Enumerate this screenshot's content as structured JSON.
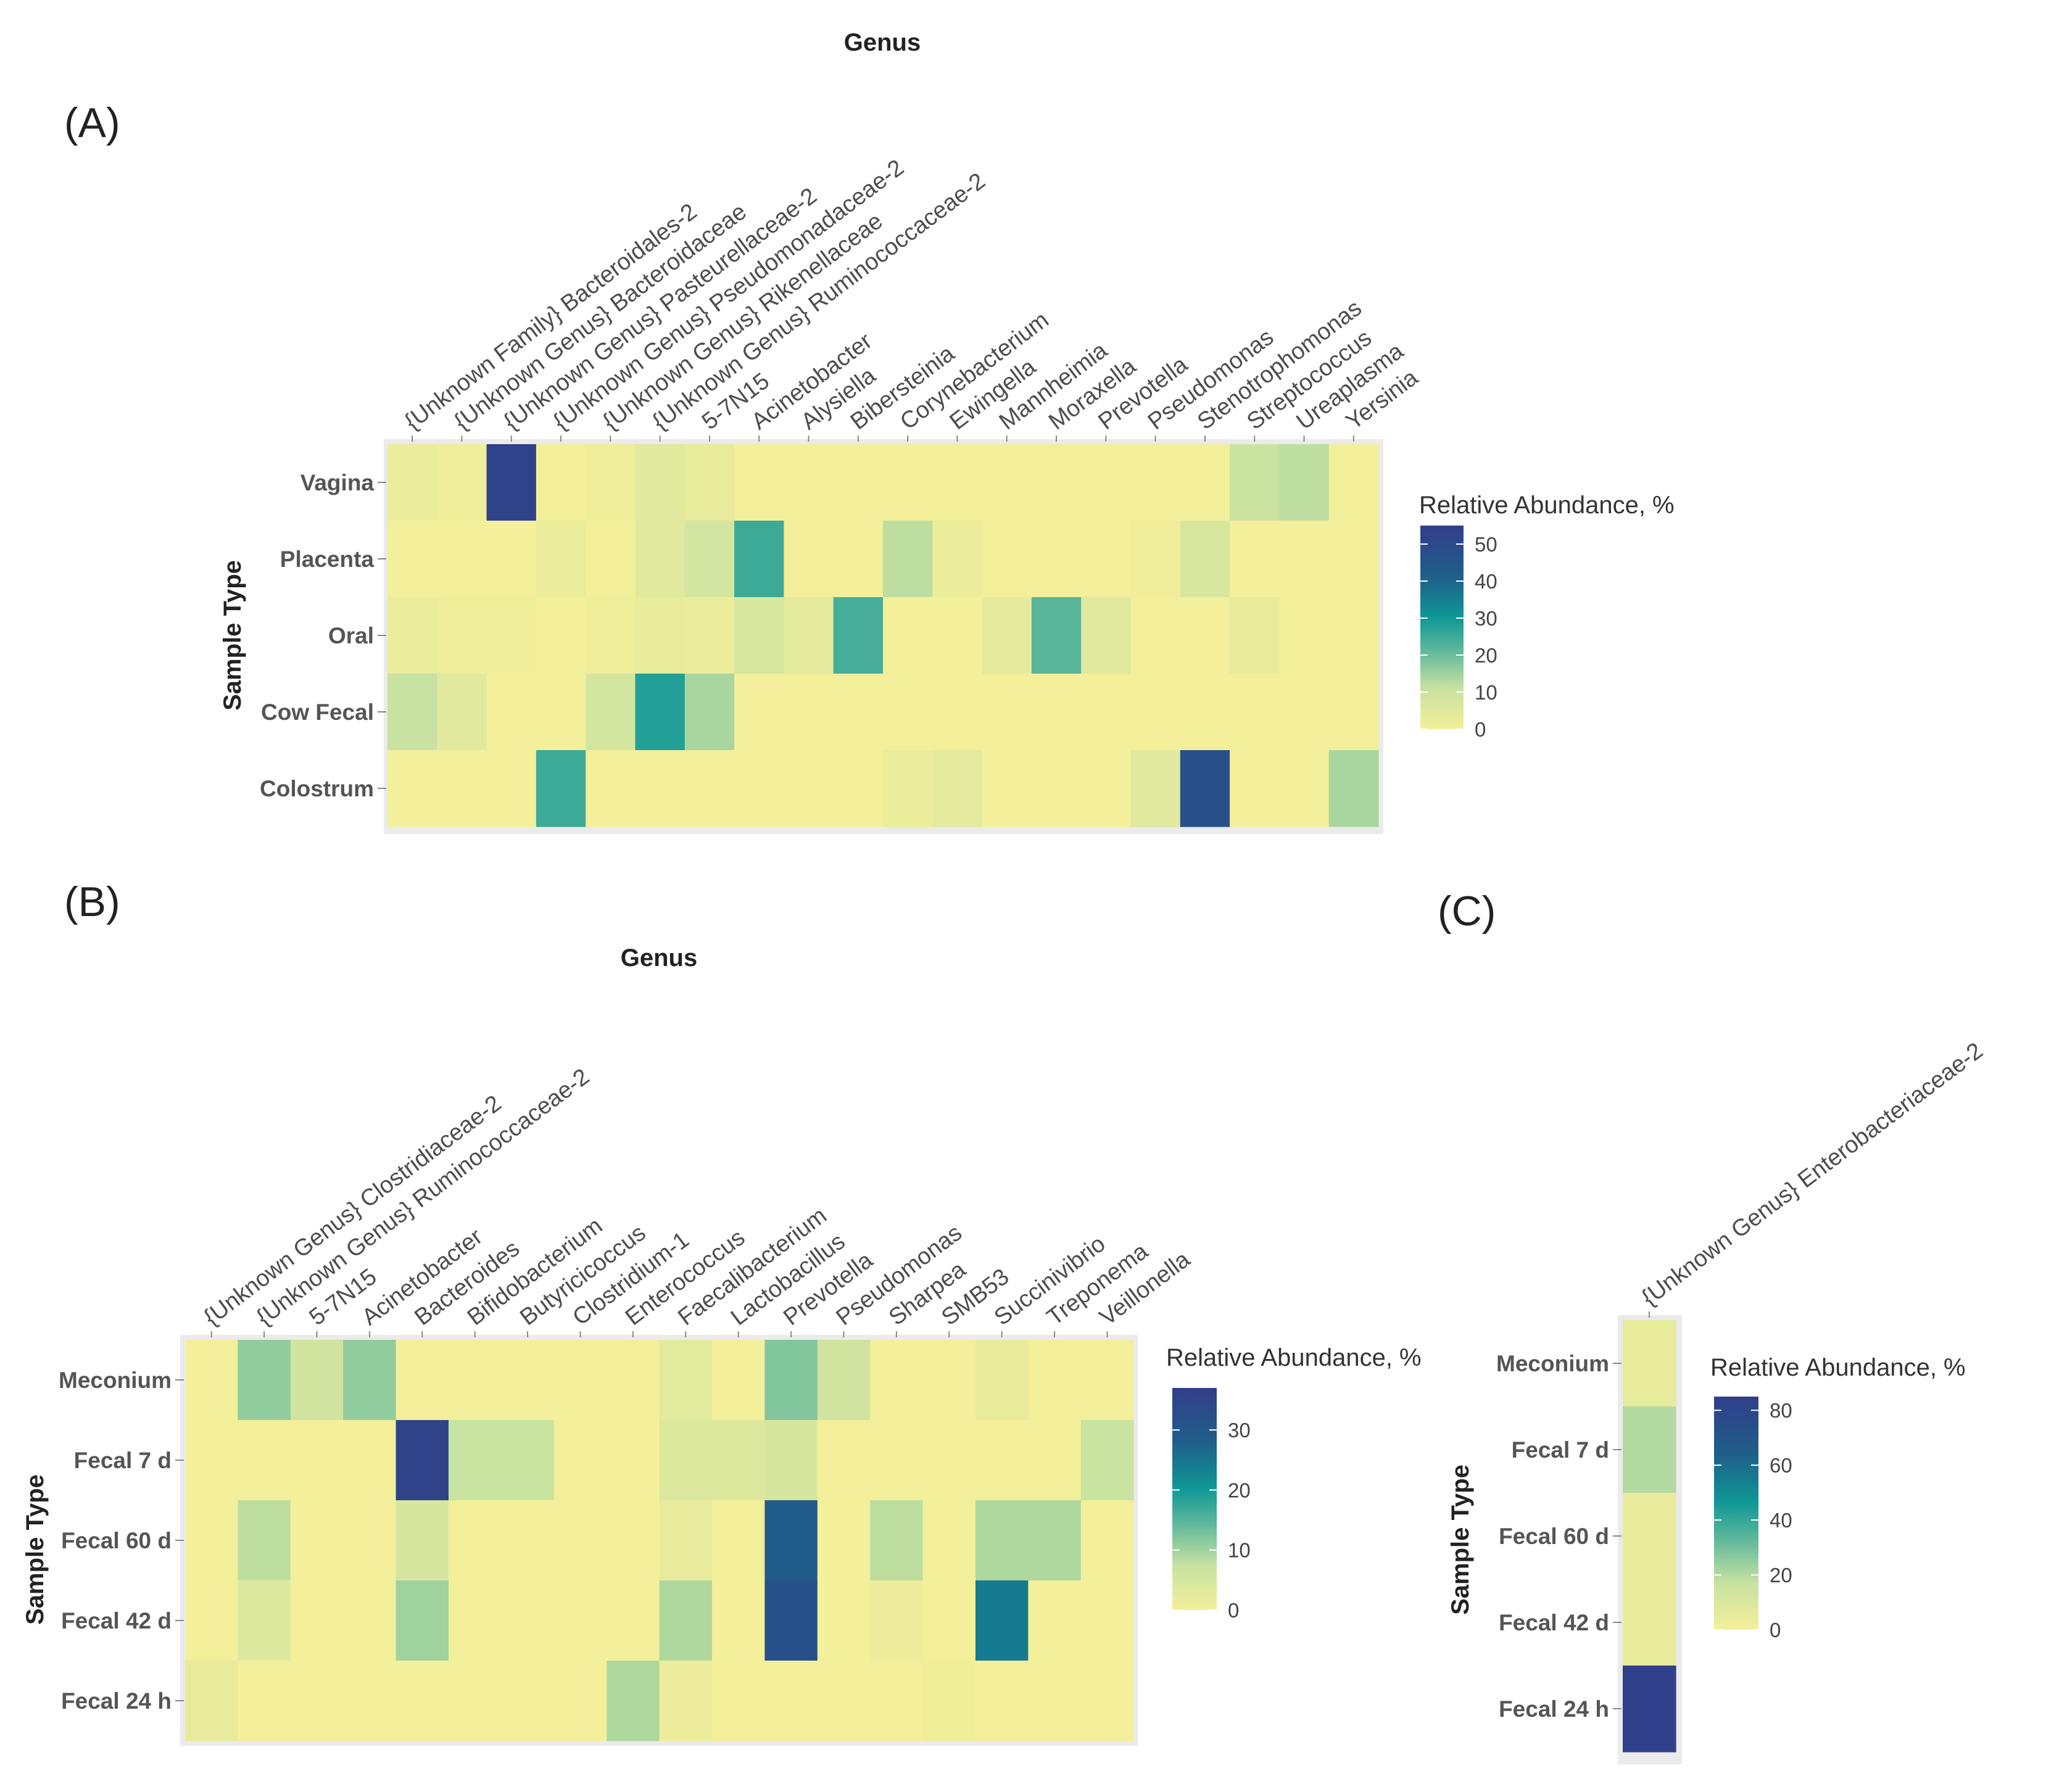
{
  "figure": {
    "panels": [
      "(A)",
      "(B)",
      "(C)"
    ]
  },
  "chart_data": [
    {
      "type": "heatmap",
      "panel": "(A)",
      "title": "",
      "xlabel": "Genus",
      "ylabel": "Sample Type",
      "legend_title": "Relative Abundance, %",
      "legend_range": [
        0,
        55
      ],
      "legend_ticks": [
        0,
        10,
        20,
        30,
        40,
        50
      ],
      "categories": [
        "{Unknown Family} Bacteroidales-2",
        "{Unknown Genus} Bacteroidaceae",
        "{Unknown Genus} Pasteurellaceae-2",
        "{Unknown Genus} Pseudomonadaceae-2",
        "{Unknown Genus} Rikenellaceae",
        "{Unknown Genus} Ruminococcaceae-2",
        "5-7N15",
        "Acinetobacter",
        "Alysiella",
        "Bibersteinia",
        "Corynebacterium",
        "Ewingella",
        "Mannheimia",
        "Moraxella",
        "Prevotella",
        "Pseudomonas",
        "Stenotrophomonas",
        "Streptococcus",
        "Ureaplasma",
        "Yersinia"
      ],
      "rows": [
        "Vagina",
        "Placenta",
        "Oral",
        "Cow Fecal",
        "Colostrum"
      ],
      "values": [
        [
          2,
          1,
          53,
          0,
          1,
          5,
          3,
          0,
          0,
          0,
          0,
          0,
          0,
          0,
          0,
          0,
          0,
          10,
          12,
          0
        ],
        [
          0,
          0,
          0,
          2,
          0,
          5,
          8,
          25,
          0,
          0,
          12,
          2,
          0,
          0,
          0,
          1,
          7,
          0,
          0,
          0
        ],
        [
          2,
          1,
          1,
          0,
          1,
          3,
          2,
          7,
          4,
          24,
          0,
          0,
          4,
          22,
          5,
          0,
          0,
          3,
          0,
          0
        ],
        [
          11,
          5,
          0,
          0,
          8,
          28,
          14,
          0,
          0,
          0,
          0,
          0,
          0,
          0,
          0,
          0,
          0,
          0,
          0,
          0
        ],
        [
          0,
          0,
          0,
          25,
          0,
          0,
          0,
          0,
          0,
          0,
          2,
          4,
          0,
          0,
          0,
          5,
          48,
          0,
          0,
          14
        ]
      ]
    },
    {
      "type": "heatmap",
      "panel": "(B)",
      "title": "",
      "xlabel": "Genus",
      "ylabel": "Sample Type",
      "legend_title": "Relative Abundance, %",
      "legend_range": [
        0,
        37
      ],
      "legend_ticks": [
        0,
        10,
        20,
        30
      ],
      "categories": [
        "{Unknown Genus} Clostridiaceae-2",
        "{Unknown Genus} Ruminococcaceae-2",
        "5-7N15",
        "Acinetobacter",
        "Bacteroides",
        "Bifidobacterium",
        "Butyricicoccus",
        "Clostridium-1",
        "Enterococcus",
        "Faecalibacterium",
        "Lactobacillus",
        "Prevotella",
        "Pseudomonas",
        "Sharpea",
        "SMB53",
        "Succinivibrio",
        "Treponema",
        "Veillonella"
      ],
      "rows": [
        "Meconium",
        "Fecal 7 d",
        "Fecal 60 d",
        "Fecal 42 d",
        "Fecal 24 h"
      ],
      "values": [
        [
          0,
          11,
          6,
          11,
          0,
          0,
          0,
          0,
          0,
          3,
          0,
          12,
          6,
          0,
          0,
          2,
          0,
          0
        ],
        [
          0,
          0,
          0,
          0,
          36,
          7,
          7,
          0,
          0,
          4,
          4,
          5,
          0,
          0,
          0,
          0,
          0,
          7
        ],
        [
          0,
          8,
          0,
          0,
          5,
          0,
          0,
          0,
          0,
          2,
          0,
          29,
          0,
          8,
          0,
          9,
          9,
          0
        ],
        [
          0,
          4,
          0,
          0,
          10,
          0,
          0,
          0,
          0,
          9,
          0,
          32,
          0,
          1,
          0,
          24,
          0,
          0
        ],
        [
          2,
          0,
          0,
          0,
          0,
          0,
          0,
          0,
          9,
          1,
          0,
          0,
          0,
          0,
          0.5,
          0,
          0,
          0
        ]
      ]
    },
    {
      "type": "heatmap",
      "panel": "(C)",
      "title": "",
      "xlabel": "",
      "ylabel": "Sample Type",
      "legend_title": "Relative Abundance, %",
      "legend_range": [
        0,
        85
      ],
      "legend_ticks": [
        0,
        20,
        40,
        60,
        80
      ],
      "categories": [
        "{Unknown Genus} Enterobacteriaceae-2"
      ],
      "rows": [
        "Meconium",
        "Fecal 7 d",
        "Fecal 60 d",
        "Fecal 42 d",
        "Fecal 24 h"
      ],
      "values": [
        [
          5
        ],
        [
          20
        ],
        [
          4
        ],
        [
          4
        ],
        [
          84
        ]
      ]
    }
  ]
}
